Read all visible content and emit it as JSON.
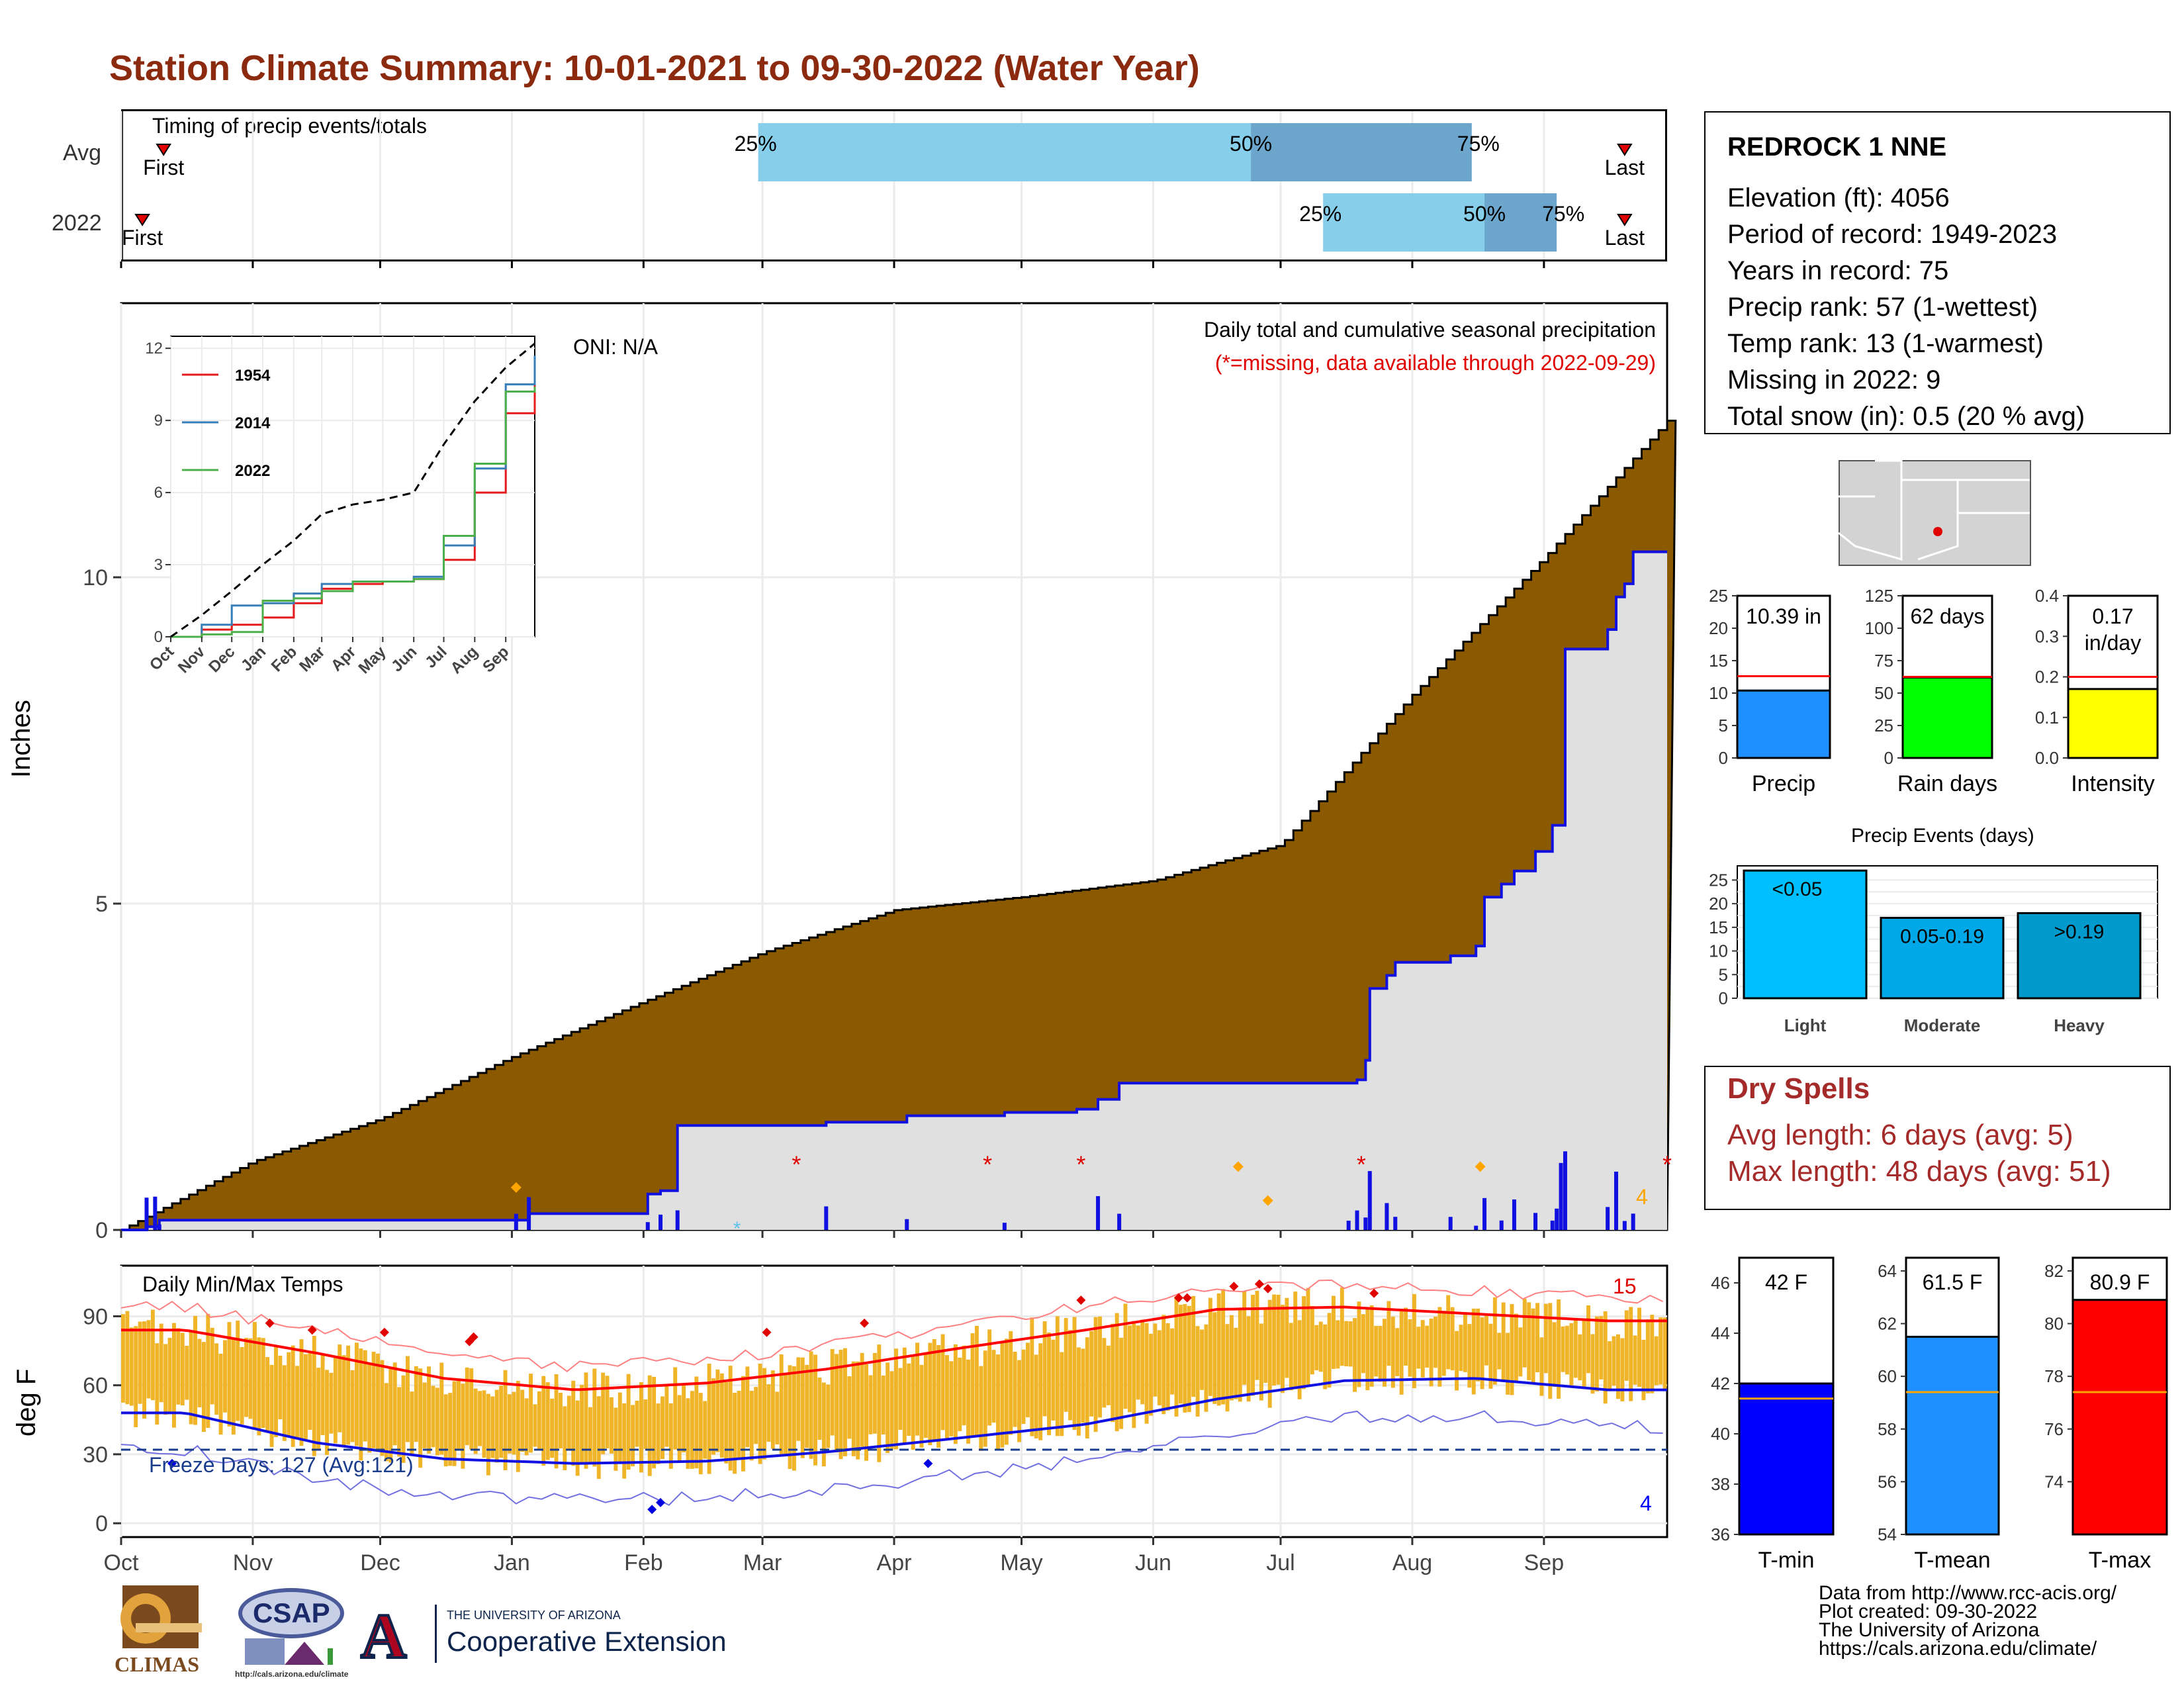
{
  "title": "Station Climate Summary: 10-01-2021 to 09-30-2022 (Water Year)",
  "colors": {
    "title": "#8B2A0E",
    "cum_fill": "#8B5A00",
    "obs_fill": "#E0E0E0",
    "obs_line": "#1010E0",
    "daily_bar": "#1010E0",
    "temp_bar": "#F0B429",
    "tmax_avg": "#FF0000",
    "tmin_avg": "#1010E0",
    "timing_light": "#87CEEB",
    "timing_dark": "#6CA6CD",
    "precip_bar": "#1E90FF",
    "rain_days_bar": "#00FF00",
    "intensity_bar": "#FFFF00",
    "events_light": "#00BFFF",
    "events_mod": "#00A8E8",
    "events_heavy": "#009ACD",
    "tmin_bar": "#0000FF",
    "tmean_bar": "#1E90FF",
    "tmax_bar": "#FF0000",
    "dry_spells": "#A52A2A"
  },
  "timing": {
    "panel_label": "Timing of precip events/totals",
    "rows": [
      {
        "label": "Avg",
        "first_label": "First",
        "last_label": "Last",
        "p25": "25%",
        "p50": "50%",
        "p75": "75%",
        "first_day": 10,
        "p25_day": 150,
        "p50_day": 266,
        "p75_day": 318,
        "last_day": 354
      },
      {
        "label": "2022",
        "first_label": "First",
        "last_label": "Last",
        "p25": "25%",
        "p50": "50%",
        "p75": "75%",
        "first_day": 5,
        "p25_day": 283,
        "p50_day": 321,
        "p75_day": 338,
        "last_day": 354
      }
    ]
  },
  "main": {
    "ylabel": "Inches",
    "y_ticks": [
      "0",
      "5",
      "10"
    ],
    "oni": "ONI: N/A",
    "desc": "Daily total and cumulative seasonal precipitation",
    "missing_note": "(*=missing, data available through 2022-09-29)",
    "missing_count": "4"
  },
  "inset": {
    "y_ticks": [
      "0",
      "3",
      "6",
      "9",
      "12"
    ],
    "x_ticks": [
      "Oct",
      "Nov",
      "Dec",
      "Jan",
      "Feb",
      "Mar",
      "Apr",
      "May",
      "Jun",
      "Jul",
      "Aug",
      "Sep"
    ],
    "legend": [
      "1954",
      "2014",
      "2022"
    ]
  },
  "temps": {
    "panel_label": "Daily Min/Max Temps",
    "ylabel": "deg F",
    "y_ticks": [
      "0",
      "30",
      "60",
      "90"
    ],
    "freeze": "Freeze Days: 127 (Avg:121)",
    "max_count": "15",
    "min_count": "4"
  },
  "x_months": [
    "Oct",
    "Nov",
    "Dec",
    "Jan",
    "Feb",
    "Mar",
    "Apr",
    "May",
    "Jun",
    "Jul",
    "Aug",
    "Sep"
  ],
  "station": {
    "name": "REDROCK 1 NNE",
    "lines": [
      "Elevation (ft): 4056",
      "Period of record: 1949-2023",
      "Years in record: 75",
      "Precip rank: 57 (1-wettest)",
      "Temp rank: 13 (1-warmest)",
      "Missing in 2022: 9",
      "Total snow (in): 0.5 (20 % avg)"
    ]
  },
  "gauges": [
    {
      "name": "Precip",
      "label": "10.39 in",
      "ticks": [
        "0",
        "5",
        "10",
        "15",
        "20",
        "25"
      ],
      "value": 10.39,
      "avg": 12.6,
      "max": 25
    },
    {
      "name": "Rain days",
      "label": "62 days",
      "ticks": [
        "0",
        "25",
        "50",
        "75",
        "100",
        "125"
      ],
      "value": 62,
      "avg": 62.5,
      "max": 125
    },
    {
      "name": "Intensity",
      "label_1": "0.17",
      "label_2": "in/day",
      "ticks": [
        "0.0",
        "0.1",
        "0.2",
        "0.3",
        "0.4"
      ],
      "value": 0.17,
      "avg": 0.2,
      "max": 0.4
    }
  ],
  "events": {
    "title": "Precip Events (days)",
    "ticks": [
      "0",
      "5",
      "10",
      "15",
      "20",
      "25"
    ],
    "categories": [
      "Light",
      "Moderate",
      "Heavy"
    ],
    "bar_labels": [
      "<0.05",
      "0.05-0.19",
      ">0.19"
    ],
    "values": [
      27,
      17,
      18
    ]
  },
  "dry_spells": {
    "title": "Dry Spells",
    "avg": "Avg length: 6 days (avg: 5)",
    "max": "Max length: 48 days (avg: 51)"
  },
  "temp_gauges": [
    {
      "name": "T-min",
      "label": "42 F",
      "ticks": [
        "36",
        "38",
        "40",
        "42",
        "44",
        "46"
      ],
      "min": 36,
      "max": 47,
      "value": 42.0,
      "avg": 41.4
    },
    {
      "name": "T-mean",
      "label": "61.5 F",
      "ticks": [
        "54",
        "56",
        "58",
        "60",
        "62",
        "64"
      ],
      "min": 54,
      "max": 64.5,
      "value": 61.5,
      "avg": 59.4
    },
    {
      "name": "T-max",
      "label": "80.9 F",
      "ticks": [
        "74",
        "76",
        "78",
        "80",
        "82"
      ],
      "min": 72,
      "max": 82.5,
      "value": 80.9,
      "avg": 77.4
    }
  ],
  "logos": {
    "climas": "CLIMAS",
    "csap": "CSAP",
    "csap_url": "http://cals.arizona.edu/climate",
    "ua_small": "THE UNIVERSITY OF ARIZONA",
    "ua_big": "Cooperative Extension",
    "ua_mark": "A"
  },
  "footer": [
    "Data from http://www.rcc-acis.org/",
    "Plot created: 09-30-2022",
    "The University of Arizona",
    "https://cals.arizona.edu/climate/"
  ],
  "chart_data": [
    {
      "type": "area",
      "title": "Daily total and cumulative seasonal precipitation",
      "ylabel": "Inches",
      "ylim": [
        0,
        13.5
      ],
      "x": [
        "Oct",
        "Nov",
        "Dec",
        "Jan",
        "Feb",
        "Mar",
        "Apr",
        "May",
        "Jun",
        "Jul",
        "Aug",
        "Sep",
        "Sep 30"
      ],
      "series": [
        {
          "name": "Avg cumulative",
          "values": [
            0.0,
            1.05,
            1.7,
            2.65,
            3.5,
            4.25,
            4.9,
            5.1,
            5.35,
            5.9,
            8.2,
            10.3,
            12.4
          ]
        },
        {
          "name": "2022 cumulative",
          "values": [
            0.0,
            0.15,
            0.15,
            0.5,
            1.6,
            1.75,
            1.85,
            2.25,
            2.25,
            2.3,
            4.1,
            8.9,
            10.39
          ]
        }
      ]
    },
    {
      "type": "line",
      "title": "",
      "ylim": [
        0,
        12.5
      ],
      "x": [
        "Oct",
        "Nov",
        "Dec",
        "Jan",
        "Feb",
        "Mar",
        "Apr",
        "May",
        "Jun",
        "Jul",
        "Aug",
        "Sep",
        "Sep 30"
      ],
      "series": [
        {
          "name": "1954",
          "values": [
            0,
            0.3,
            0.5,
            0.8,
            1.4,
            2.0,
            2.2,
            2.3,
            2.4,
            3.2,
            6.0,
            9.3,
            10.6
          ]
        },
        {
          "name": "2014",
          "values": [
            0,
            0.5,
            1.3,
            1.4,
            1.8,
            2.2,
            2.3,
            2.3,
            2.5,
            3.8,
            7.0,
            10.5,
            11.7
          ]
        },
        {
          "name": "2022",
          "values": [
            0,
            0.1,
            0.2,
            1.5,
            1.6,
            1.9,
            2.3,
            2.3,
            2.4,
            4.2,
            7.2,
            10.2,
            10.4
          ]
        },
        {
          "name": "",
          "values": [
            0,
            0.9,
            1.9,
            3.0,
            4.0,
            5.1,
            5.5,
            5.7,
            6.0,
            8.0,
            9.8,
            11.2,
            12.2
          ]
        }
      ]
    },
    {
      "type": "bar",
      "title": "Daily Min/Max Temps",
      "ylabel": "deg F",
      "ylim": [
        -5,
        112
      ],
      "x": [
        "Oct",
        "Nov",
        "Dec",
        "Jan",
        "Feb",
        "Mar",
        "Apr",
        "May",
        "Jun",
        "Jul",
        "Aug",
        "Sep"
      ],
      "series": [
        {
          "name": "Avg max",
          "values": [
            84,
            74,
            63,
            58,
            61,
            67,
            76,
            84,
            93,
            94,
            91,
            88
          ]
        },
        {
          "name": "Avg min",
          "values": [
            48,
            35,
            28,
            26,
            27,
            31,
            37,
            43,
            54,
            62,
            63,
            58
          ]
        }
      ]
    }
  ]
}
